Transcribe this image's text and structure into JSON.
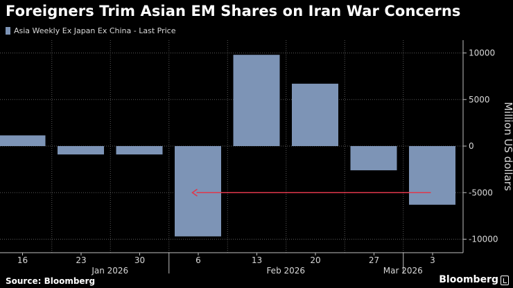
{
  "title": "Foreigners Trim Asian EM Shares on Iran War Concerns",
  "source": "Source: Bloomberg",
  "brand": "Bloomberg",
  "colors": {
    "bar": "#7d94b6",
    "arrow": "#e0374b",
    "grid": "#5a5a5a",
    "text": "#ffffff",
    "muted": "#d9d9d9"
  },
  "chart_data": {
    "type": "bar",
    "title": "Foreigners Trim Asian EM Shares on Iran War Concerns",
    "legend": [
      "Asia Weekly Ex Japan Ex China - Last Price"
    ],
    "categories": [
      "16",
      "23",
      "30",
      "6",
      "13",
      "20",
      "27",
      "3"
    ],
    "series": [
      {
        "name": "Asia Weekly Ex Japan Ex China - Last Price",
        "values": [
          1150,
          -900,
          -900,
          -9700,
          9800,
          6700,
          -2600,
          -6300
        ]
      }
    ],
    "month_labels": [
      {
        "label": "Jan 2026",
        "between": [
          "23",
          "30"
        ]
      },
      {
        "label": "Feb 2026",
        "between": [
          "13",
          "20"
        ]
      },
      {
        "label": "Mar 2026",
        "between": [
          "27",
          "3"
        ]
      }
    ],
    "month_boundaries": [
      [
        "30",
        "6"
      ],
      [
        "27",
        "3"
      ]
    ],
    "yticks": [
      10000,
      5000,
      0,
      -5000,
      -10000
    ],
    "ytick_labels": [
      "10000",
      "5000",
      "0",
      "-5000",
      "-10000"
    ],
    "ylim": [
      -11000,
      11000
    ],
    "ylabel": "Million US dollars",
    "xlabel": "",
    "annotation": {
      "type": "arrow",
      "from_category": "3",
      "to_category": "6",
      "y": -5000
    }
  }
}
